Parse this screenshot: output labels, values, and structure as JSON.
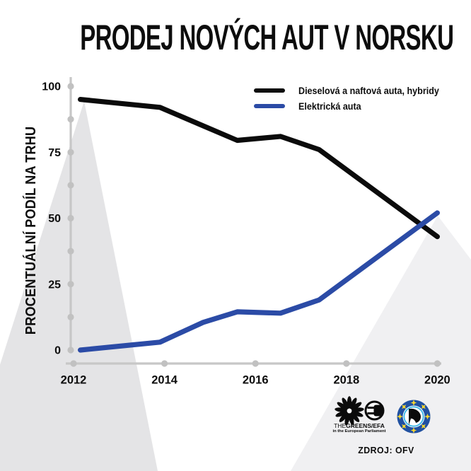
{
  "title": "PRODEJ NOVÝCH AUT V NORSKU",
  "chart_data": {
    "type": "line",
    "title": "PRODEJ NOVÝCH AUT V NORSKU",
    "ylabel": "PROCENTUÁLNÍ PODÍL NA TRHU",
    "xlabel": "",
    "ylim": [
      0,
      100
    ],
    "xlim": [
      2012,
      2020
    ],
    "yticks": [
      100,
      75,
      50,
      25,
      0
    ],
    "xticks": [
      2012,
      2014,
      2016,
      2018,
      2020
    ],
    "y_minor_step": 12.5,
    "grid": false,
    "legend_position": "top-right",
    "x": [
      2012.15,
      2013.9,
      2014.85,
      2015.6,
      2016.55,
      2017.4,
      2020
    ],
    "series": [
      {
        "id": "diesel",
        "name": "Dieselová a naftová auta, hybridy",
        "color": "#0b0b0b",
        "values": [
          95,
          92,
          85,
          79.5,
          81,
          76,
          43
        ]
      },
      {
        "id": "electric",
        "name": "Elektrická auta",
        "color": "#2b4ba6",
        "values": [
          0,
          3,
          10.5,
          14.5,
          14,
          19,
          52
        ]
      }
    ]
  },
  "footer": {
    "greens_the": "THE",
    "greens_name": "GREENS/EFA",
    "greens_sub": "in the European Parliament",
    "source": "ZDROJ: OFV"
  },
  "colors": {
    "diesel_line": "#0b0b0b",
    "electric_line": "#2b4ba6",
    "axis": "#c7c7c7",
    "axis_dot": "#c1c1c1",
    "bg_triangle_left": "#e4e4e6",
    "bg_triangle_right": "#f0f0f2",
    "pirate_ring_blue": "#2151a1",
    "pirate_star_yellow": "#ffd92b",
    "pirate_inner_cyan": "#35b5e8"
  }
}
